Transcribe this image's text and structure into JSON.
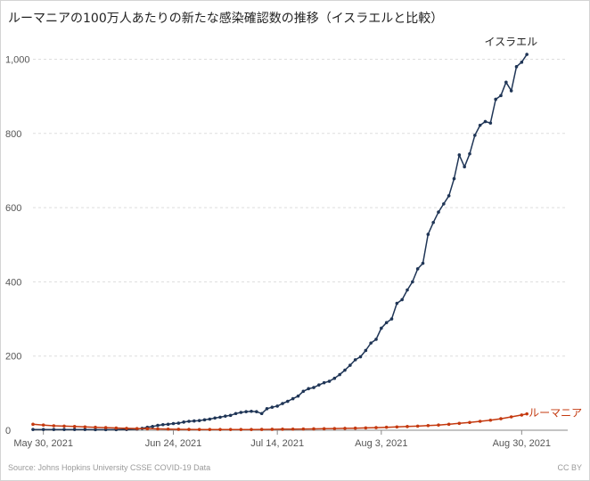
{
  "title": "ルーマニアの100万人あたりの新たな感染確認数の推移（イスラエルと比較）",
  "source": "Source: Johns Hopkins University CSSE COVID-19 Data",
  "license": "CC BY",
  "chart_data": {
    "type": "line",
    "title": "ルーマニアの100万人あたりの新たな感染確認数の推移（イスラエルと比較）",
    "xlabel": "",
    "ylabel": "",
    "x_start": "2021-05-28",
    "x_end": "2021-09-01",
    "ylim": [
      0,
      1030
    ],
    "yticks": [
      0,
      200,
      400,
      600,
      800,
      1000
    ],
    "ytick_labels": [
      "0",
      "200",
      "400",
      "600",
      "800",
      "1,000"
    ],
    "xticks": [
      "2021-05-30",
      "2021-06-24",
      "2021-07-14",
      "2021-08-03",
      "2021-08-30"
    ],
    "xtick_labels": [
      "May 30, 2021",
      "Jun 24, 2021",
      "Jul 14, 2021",
      "Aug 3, 2021",
      "Aug 30, 2021"
    ],
    "grid": true,
    "series": [
      {
        "name": "イスラエル",
        "color": "#1f3556",
        "points": [
          [
            "2021-05-28",
            2
          ],
          [
            "2021-05-30",
            2
          ],
          [
            "2021-06-01",
            2
          ],
          [
            "2021-06-03",
            2
          ],
          [
            "2021-06-05",
            2
          ],
          [
            "2021-06-07",
            2
          ],
          [
            "2021-06-09",
            1.5
          ],
          [
            "2021-06-11",
            1.5
          ],
          [
            "2021-06-13",
            1.5
          ],
          [
            "2021-06-15",
            2
          ],
          [
            "2021-06-17",
            3
          ],
          [
            "2021-06-18",
            5
          ],
          [
            "2021-06-19",
            8
          ],
          [
            "2021-06-20",
            10
          ],
          [
            "2021-06-21",
            13
          ],
          [
            "2021-06-22",
            15
          ],
          [
            "2021-06-23",
            16
          ],
          [
            "2021-06-24",
            18
          ],
          [
            "2021-06-25",
            19
          ],
          [
            "2021-06-26",
            22
          ],
          [
            "2021-06-27",
            24
          ],
          [
            "2021-06-28",
            25
          ],
          [
            "2021-06-29",
            26
          ],
          [
            "2021-06-30",
            28
          ],
          [
            "2021-07-01",
            30
          ],
          [
            "2021-07-02",
            33
          ],
          [
            "2021-07-03",
            35
          ],
          [
            "2021-07-04",
            38
          ],
          [
            "2021-07-05",
            40
          ],
          [
            "2021-07-06",
            45
          ],
          [
            "2021-07-07",
            48
          ],
          [
            "2021-07-08",
            50
          ],
          [
            "2021-07-09",
            51
          ],
          [
            "2021-07-10",
            50
          ],
          [
            "2021-07-11",
            45
          ],
          [
            "2021-07-12",
            58
          ],
          [
            "2021-07-13",
            62
          ],
          [
            "2021-07-14",
            65
          ],
          [
            "2021-07-15",
            72
          ],
          [
            "2021-07-16",
            78
          ],
          [
            "2021-07-17",
            85
          ],
          [
            "2021-07-18",
            92
          ],
          [
            "2021-07-19",
            105
          ],
          [
            "2021-07-20",
            112
          ],
          [
            "2021-07-21",
            115
          ],
          [
            "2021-07-22",
            122
          ],
          [
            "2021-07-23",
            128
          ],
          [
            "2021-07-24",
            132
          ],
          [
            "2021-07-25",
            140
          ],
          [
            "2021-07-26",
            150
          ],
          [
            "2021-07-27",
            162
          ],
          [
            "2021-07-28",
            175
          ],
          [
            "2021-07-29",
            190
          ],
          [
            "2021-07-30",
            198
          ],
          [
            "2021-07-31",
            215
          ],
          [
            "2021-08-01",
            235
          ],
          [
            "2021-08-02",
            245
          ],
          [
            "2021-08-03",
            275
          ],
          [
            "2021-08-04",
            290
          ],
          [
            "2021-08-05",
            300
          ],
          [
            "2021-08-06",
            342
          ],
          [
            "2021-08-07",
            352
          ],
          [
            "2021-08-08",
            378
          ],
          [
            "2021-08-09",
            400
          ],
          [
            "2021-08-10",
            435
          ],
          [
            "2021-08-11",
            450
          ],
          [
            "2021-08-12",
            528
          ],
          [
            "2021-08-13",
            560
          ],
          [
            "2021-08-14",
            588
          ],
          [
            "2021-08-15",
            610
          ],
          [
            "2021-08-16",
            632
          ],
          [
            "2021-08-17",
            678
          ],
          [
            "2021-08-18",
            742
          ],
          [
            "2021-08-19",
            710
          ],
          [
            "2021-08-20",
            745
          ],
          [
            "2021-08-21",
            795
          ],
          [
            "2021-08-22",
            822
          ],
          [
            "2021-08-23",
            832
          ],
          [
            "2021-08-24",
            828
          ],
          [
            "2021-08-25",
            892
          ],
          [
            "2021-08-26",
            902
          ],
          [
            "2021-08-27",
            938
          ],
          [
            "2021-08-28",
            915
          ],
          [
            "2021-08-29",
            980
          ],
          [
            "2021-08-30",
            992
          ],
          [
            "2021-08-31",
            1013
          ]
        ]
      },
      {
        "name": "ルーマニア",
        "color": "#c4390f",
        "points": [
          [
            "2021-05-28",
            16
          ],
          [
            "2021-05-30",
            14
          ],
          [
            "2021-06-01",
            12
          ],
          [
            "2021-06-03",
            11
          ],
          [
            "2021-06-05",
            10
          ],
          [
            "2021-06-07",
            9
          ],
          [
            "2021-06-09",
            8
          ],
          [
            "2021-06-11",
            7
          ],
          [
            "2021-06-13",
            6
          ],
          [
            "2021-06-15",
            5
          ],
          [
            "2021-06-17",
            4.5
          ],
          [
            "2021-06-19",
            4
          ],
          [
            "2021-06-21",
            3.5
          ],
          [
            "2021-06-23",
            3
          ],
          [
            "2021-06-25",
            2.5
          ],
          [
            "2021-06-27",
            2.2
          ],
          [
            "2021-06-29",
            2
          ],
          [
            "2021-07-01",
            2
          ],
          [
            "2021-07-03",
            2
          ],
          [
            "2021-07-05",
            2
          ],
          [
            "2021-07-07",
            2
          ],
          [
            "2021-07-09",
            2
          ],
          [
            "2021-07-11",
            2.2
          ],
          [
            "2021-07-13",
            2.5
          ],
          [
            "2021-07-15",
            2.8
          ],
          [
            "2021-07-17",
            3
          ],
          [
            "2021-07-19",
            3.3
          ],
          [
            "2021-07-21",
            3.7
          ],
          [
            "2021-07-23",
            4
          ],
          [
            "2021-07-25",
            4.5
          ],
          [
            "2021-07-27",
            5
          ],
          [
            "2021-07-29",
            5.5
          ],
          [
            "2021-07-31",
            6.3
          ],
          [
            "2021-08-02",
            7
          ],
          [
            "2021-08-04",
            8
          ],
          [
            "2021-08-06",
            9
          ],
          [
            "2021-08-08",
            10
          ],
          [
            "2021-08-10",
            11
          ],
          [
            "2021-08-12",
            12.5
          ],
          [
            "2021-08-14",
            14
          ],
          [
            "2021-08-16",
            16
          ],
          [
            "2021-08-18",
            18.5
          ],
          [
            "2021-08-20",
            21
          ],
          [
            "2021-08-22",
            24
          ],
          [
            "2021-08-24",
            27
          ],
          [
            "2021-08-26",
            31
          ],
          [
            "2021-08-28",
            36
          ],
          [
            "2021-08-30",
            41
          ],
          [
            "2021-08-31",
            44
          ]
        ]
      }
    ]
  }
}
